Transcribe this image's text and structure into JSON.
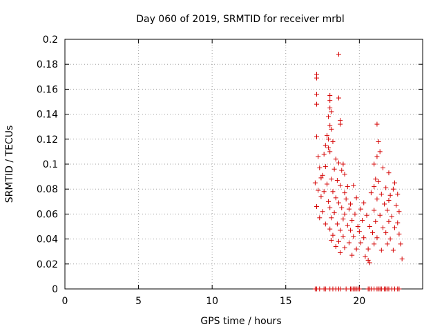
{
  "chart_data": {
    "type": "scatter",
    "title": "Day 060 of 2019, SRMTID for receiver mrbl",
    "xlabel": "GPS time / hours",
    "ylabel": "SRMTID / TECUs",
    "xlim": [
      0,
      24.3
    ],
    "ylim": [
      0,
      0.2
    ],
    "xticks": [
      0,
      5,
      10,
      15,
      20
    ],
    "xtick_labels": [
      "0",
      "5",
      "10",
      "15",
      "20"
    ],
    "yticks": [
      0,
      0.02,
      0.04,
      0.06,
      0.08,
      0.1,
      0.12,
      0.14,
      0.16,
      0.18,
      0.2
    ],
    "ytick_labels": [
      "0",
      "0.02",
      "0.04",
      "0.06",
      "0.08",
      "0.1",
      "0.12",
      "0.14",
      "0.16",
      "0.18",
      "0.2"
    ],
    "grid": true,
    "marker": "+",
    "color": "#d40000",
    "series": [
      {
        "name": "SRMTID",
        "points": [
          [
            17.0,
            0.0
          ],
          [
            17.1,
            0.0
          ],
          [
            17.3,
            0.0
          ],
          [
            17.6,
            0.0
          ],
          [
            17.7,
            0.0
          ],
          [
            18.0,
            0.0
          ],
          [
            18.2,
            0.0
          ],
          [
            18.4,
            0.0
          ],
          [
            18.6,
            0.0
          ],
          [
            18.7,
            0.0
          ],
          [
            19.1,
            0.0
          ],
          [
            19.4,
            0.0
          ],
          [
            19.5,
            0.0
          ],
          [
            19.6,
            0.0
          ],
          [
            19.7,
            0.0
          ],
          [
            19.8,
            0.0
          ],
          [
            19.9,
            0.0
          ],
          [
            20.0,
            0.0
          ],
          [
            20.6,
            0.0
          ],
          [
            20.7,
            0.0
          ],
          [
            20.8,
            0.0
          ],
          [
            21.0,
            0.0
          ],
          [
            21.2,
            0.0
          ],
          [
            21.3,
            0.0
          ],
          [
            21.4,
            0.0
          ],
          [
            21.5,
            0.0
          ],
          [
            21.7,
            0.0
          ],
          [
            21.8,
            0.0
          ],
          [
            21.9,
            0.0
          ],
          [
            22.0,
            0.0
          ],
          [
            22.2,
            0.0
          ],
          [
            22.4,
            0.0
          ],
          [
            22.6,
            0.0
          ],
          [
            22.7,
            0.0
          ],
          [
            18.6,
            0.188
          ],
          [
            17.1,
            0.172
          ],
          [
            17.1,
            0.169
          ],
          [
            17.1,
            0.156
          ],
          [
            18.0,
            0.155
          ],
          [
            18.0,
            0.151
          ],
          [
            18.6,
            0.153
          ],
          [
            17.1,
            0.148
          ],
          [
            18.0,
            0.145
          ],
          [
            18.1,
            0.142
          ],
          [
            17.9,
            0.138
          ],
          [
            18.7,
            0.135
          ],
          [
            18.7,
            0.132
          ],
          [
            18.0,
            0.131
          ],
          [
            18.1,
            0.128
          ],
          [
            21.2,
            0.132
          ],
          [
            17.1,
            0.122
          ],
          [
            17.8,
            0.123
          ],
          [
            17.9,
            0.12
          ],
          [
            18.2,
            0.118
          ],
          [
            17.7,
            0.115
          ],
          [
            17.9,
            0.113
          ],
          [
            18.0,
            0.11
          ],
          [
            17.6,
            0.108
          ],
          [
            21.3,
            0.118
          ],
          [
            21.4,
            0.11
          ],
          [
            21.2,
            0.106
          ],
          [
            17.2,
            0.106
          ],
          [
            18.4,
            0.104
          ],
          [
            18.6,
            0.101
          ],
          [
            18.9,
            0.1
          ],
          [
            21.0,
            0.1
          ],
          [
            17.3,
            0.097
          ],
          [
            17.7,
            0.098
          ],
          [
            18.3,
            0.096
          ],
          [
            18.8,
            0.095
          ],
          [
            21.6,
            0.097
          ],
          [
            22.0,
            0.093
          ],
          [
            17.5,
            0.091
          ],
          [
            19.0,
            0.092
          ],
          [
            17.4,
            0.089
          ],
          [
            18.1,
            0.088
          ],
          [
            18.5,
            0.087
          ],
          [
            21.1,
            0.088
          ],
          [
            21.3,
            0.086
          ],
          [
            22.4,
            0.085
          ],
          [
            17.0,
            0.085
          ],
          [
            17.8,
            0.084
          ],
          [
            18.7,
            0.083
          ],
          [
            19.2,
            0.082
          ],
          [
            19.6,
            0.083
          ],
          [
            21.0,
            0.082
          ],
          [
            21.8,
            0.081
          ],
          [
            22.3,
            0.08
          ],
          [
            17.2,
            0.079
          ],
          [
            17.6,
            0.078
          ],
          [
            18.2,
            0.078
          ],
          [
            19.0,
            0.077
          ],
          [
            20.8,
            0.077
          ],
          [
            21.5,
            0.076
          ],
          [
            22.1,
            0.075
          ],
          [
            22.6,
            0.076
          ],
          [
            17.4,
            0.074
          ],
          [
            18.4,
            0.073
          ],
          [
            19.1,
            0.072
          ],
          [
            19.8,
            0.073
          ],
          [
            21.2,
            0.072
          ],
          [
            22.0,
            0.071
          ],
          [
            17.9,
            0.07
          ],
          [
            18.6,
            0.069
          ],
          [
            19.4,
            0.068
          ],
          [
            20.3,
            0.069
          ],
          [
            21.7,
            0.068
          ],
          [
            22.5,
            0.067
          ],
          [
            17.1,
            0.066
          ],
          [
            18.0,
            0.065
          ],
          [
            18.8,
            0.065
          ],
          [
            19.3,
            0.064
          ],
          [
            20.1,
            0.064
          ],
          [
            21.0,
            0.063
          ],
          [
            21.9,
            0.063
          ],
          [
            22.7,
            0.062
          ],
          [
            17.5,
            0.062
          ],
          [
            18.3,
            0.061
          ],
          [
            19.0,
            0.06
          ],
          [
            19.7,
            0.06
          ],
          [
            20.5,
            0.059
          ],
          [
            21.4,
            0.059
          ],
          [
            22.2,
            0.058
          ],
          [
            17.3,
            0.057
          ],
          [
            18.1,
            0.057
          ],
          [
            18.9,
            0.056
          ],
          [
            19.5,
            0.055
          ],
          [
            20.2,
            0.055
          ],
          [
            21.1,
            0.054
          ],
          [
            22.0,
            0.054
          ],
          [
            22.6,
            0.053
          ],
          [
            17.7,
            0.052
          ],
          [
            18.5,
            0.052
          ],
          [
            19.2,
            0.051
          ],
          [
            19.9,
            0.05
          ],
          [
            20.7,
            0.05
          ],
          [
            21.6,
            0.049
          ],
          [
            22.4,
            0.049
          ],
          [
            18.0,
            0.048
          ],
          [
            18.7,
            0.047
          ],
          [
            19.4,
            0.047
          ],
          [
            20.0,
            0.046
          ],
          [
            20.9,
            0.045
          ],
          [
            21.8,
            0.045
          ],
          [
            22.7,
            0.044
          ],
          [
            18.2,
            0.043
          ],
          [
            18.9,
            0.042
          ],
          [
            19.6,
            0.042
          ],
          [
            20.3,
            0.041
          ],
          [
            21.2,
            0.041
          ],
          [
            22.1,
            0.04
          ],
          [
            18.1,
            0.039
          ],
          [
            18.6,
            0.038
          ],
          [
            19.3,
            0.037
          ],
          [
            20.1,
            0.037
          ],
          [
            21.0,
            0.036
          ],
          [
            21.9,
            0.036
          ],
          [
            22.8,
            0.036
          ],
          [
            18.4,
            0.034
          ],
          [
            19.0,
            0.033
          ],
          [
            19.8,
            0.032
          ],
          [
            20.6,
            0.032
          ],
          [
            21.5,
            0.031
          ],
          [
            22.3,
            0.031
          ],
          [
            18.7,
            0.029
          ],
          [
            19.5,
            0.027
          ],
          [
            20.4,
            0.026
          ],
          [
            20.6,
            0.023
          ],
          [
            20.7,
            0.021
          ],
          [
            22.9,
            0.024
          ]
        ]
      }
    ]
  }
}
